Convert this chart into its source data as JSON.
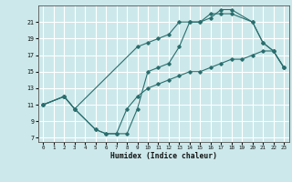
{
  "xlabel": "Humidex (Indice chaleur)",
  "bg_color": "#cce8ea",
  "grid_color": "#ffffff",
  "line_color": "#2a6e6e",
  "xlim": [
    -0.5,
    23.5
  ],
  "ylim": [
    6.5,
    23.0
  ],
  "yticks": [
    7,
    9,
    11,
    13,
    15,
    17,
    19,
    21
  ],
  "xticks": [
    0,
    1,
    2,
    3,
    4,
    5,
    6,
    7,
    8,
    9,
    10,
    11,
    12,
    13,
    14,
    15,
    16,
    17,
    18,
    19,
    20,
    21,
    22,
    23
  ],
  "curve1_x": [
    0,
    2,
    3,
    5,
    6,
    7,
    8,
    9,
    10,
    11,
    12,
    13,
    14,
    15,
    16,
    17,
    18,
    20,
    21,
    22,
    23
  ],
  "curve1_y": [
    11,
    12,
    10.5,
    8.0,
    7.5,
    7.5,
    7.5,
    10.5,
    15.0,
    15.5,
    16.0,
    18.0,
    21.0,
    21.0,
    21.5,
    22.5,
    22.5,
    21.0,
    18.5,
    17.5,
    15.5
  ],
  "curve2_x": [
    0,
    2,
    3,
    9,
    10,
    11,
    12,
    13,
    14,
    15,
    16,
    17,
    18,
    20,
    21,
    22,
    23
  ],
  "curve2_y": [
    11,
    12,
    10.5,
    18.0,
    18.5,
    19.0,
    19.5,
    21.0,
    21.0,
    21.0,
    22.0,
    22.0,
    22.0,
    21.0,
    18.5,
    17.5,
    15.5
  ],
  "curve3_x": [
    0,
    2,
    3,
    5,
    6,
    7,
    8,
    9,
    10,
    11,
    12,
    13,
    14,
    15,
    16,
    17,
    18,
    19,
    20,
    21,
    22,
    23
  ],
  "curve3_y": [
    11,
    12,
    10.5,
    8.0,
    7.5,
    7.5,
    10.5,
    12.0,
    13.0,
    13.5,
    14.0,
    14.5,
    15.0,
    15.0,
    15.5,
    16.0,
    16.5,
    16.5,
    17.0,
    17.5,
    17.5,
    15.5
  ]
}
